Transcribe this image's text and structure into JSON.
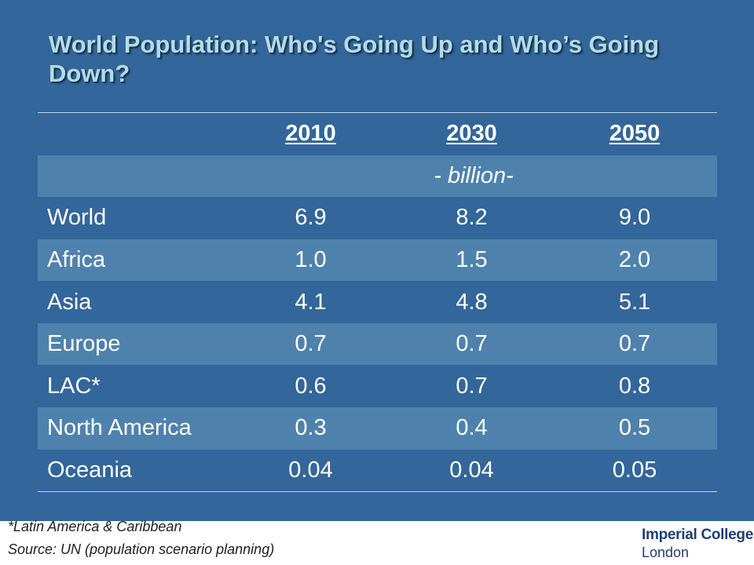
{
  "slide": {
    "title": "World Population: Who's Going Up and Who’s Going Down?"
  },
  "table": {
    "years": [
      "2010",
      "2030",
      "2050"
    ],
    "unit": "- billion-",
    "rows": [
      {
        "region": "World",
        "v2010": "6.9",
        "v2030": "8.2",
        "v2050": "9.0"
      },
      {
        "region": "Africa",
        "v2010": "1.0",
        "v2030": "1.5",
        "v2050": "2.0"
      },
      {
        "region": "Asia",
        "v2010": "4.1",
        "v2030": "4.8",
        "v2050": "5.1"
      },
      {
        "region": "Europe",
        "v2010": "0.7",
        "v2030": "0.7",
        "v2050": "0.7"
      },
      {
        "region": "LAC*",
        "v2010": "0.6",
        "v2030": "0.7",
        "v2050": "0.8"
      },
      {
        "region": "North America",
        "v2010": "0.3",
        "v2030": "0.4",
        "v2050": "0.5"
      },
      {
        "region": "Oceania",
        "v2010": "0.04",
        "v2030": "0.04",
        "v2050": "0.05"
      }
    ]
  },
  "footer": {
    "footnote": "*Latin America & Caribbean",
    "source": "Source: UN (population scenario planning)",
    "logo_line1": "Imperial College",
    "logo_line2": "London"
  },
  "colors": {
    "background": "#33669a",
    "row_band": "#4e82ad",
    "title": "#b5dbe4",
    "logo": "#1f3f78"
  }
}
